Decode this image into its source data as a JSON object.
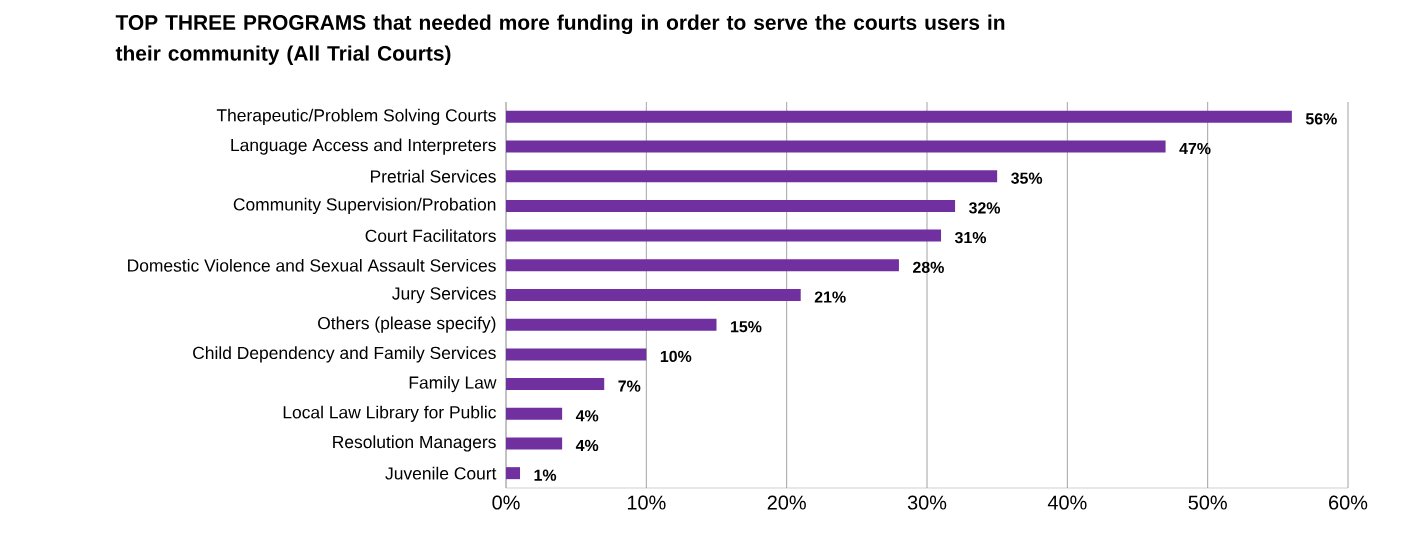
{
  "chart_data": {
    "type": "bar",
    "orientation": "horizontal",
    "title": "TOP THREE PROGRAMS that needed more funding in order to serve the courts users in their community (All Trial Courts)",
    "categories": [
      "Therapeutic/Problem Solving Courts",
      "Language Access and Interpreters",
      "Pretrial Services",
      "Community Supervision/Probation",
      "Court Facilitators",
      "Domestic Violence and Sexual Assault Services",
      "Jury Services",
      "Others (please specify)",
      "Child Dependency and Family Services",
      "Family Law",
      "Local Law Library for Public",
      "Resolution Managers",
      "Juvenile Court"
    ],
    "values": [
      56,
      47,
      35,
      32,
      31,
      28,
      21,
      15,
      10,
      7,
      4,
      4,
      1
    ],
    "value_labels": [
      "56%",
      "47%",
      "35%",
      "32%",
      "31%",
      "28%",
      "21%",
      "15%",
      "10%",
      "7%",
      "4%",
      "4%",
      "1%"
    ],
    "color": "#7030a0",
    "xlim": [
      0,
      60
    ],
    "xticks": [
      {
        "value": 0,
        "label": "0%"
      },
      {
        "value": 10,
        "label": "10%"
      },
      {
        "value": 20,
        "label": "20%"
      },
      {
        "value": 30,
        "label": "30%"
      },
      {
        "value": 40,
        "label": "40%"
      },
      {
        "value": 50,
        "label": "50%"
      },
      {
        "value": 60,
        "label": "60%"
      }
    ],
    "grid": "x"
  }
}
